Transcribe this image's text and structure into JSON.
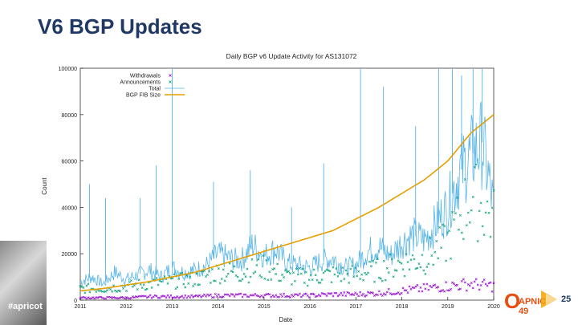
{
  "slide": {
    "title": "V6 BGP Updates",
    "footer_tag": "#apricot",
    "logo_text": "APNIC 49",
    "badge_text": "25"
  },
  "colors": {
    "title": "#1f3864",
    "withdrawals": "#9400d3",
    "announcements": "#009e73",
    "total": "#56b4e9",
    "fib": "#e69f00"
  },
  "chart_data": {
    "type": "line",
    "title": "Daily BGP v6 Update Activity for AS131072",
    "xlabel": "Date",
    "ylabel": "Count",
    "xlim": [
      2011.0,
      2020.0
    ],
    "ylim": [
      0,
      100000
    ],
    "x_ticks": [
      "2011",
      "2012",
      "2013",
      "2014",
      "2015",
      "2016",
      "2017",
      "2018",
      "2019",
      "2020"
    ],
    "y_ticks": [
      "0",
      "20000",
      "40000",
      "60000",
      "80000",
      "100000"
    ],
    "legend_position": "top-left",
    "grid": false,
    "series": [
      {
        "name": "Withdrawals",
        "style": "points",
        "x": [
          2011.0,
          2011.5,
          2012.0,
          2012.5,
          2013.0,
          2013.5,
          2014.0,
          2014.5,
          2015.0,
          2015.5,
          2016.0,
          2016.5,
          2017.0,
          2017.5,
          2018.0,
          2018.5,
          2019.0,
          2019.5,
          2020.0
        ],
        "values": [
          1000,
          1000,
          1000,
          1500,
          1500,
          1500,
          2000,
          2000,
          2000,
          2000,
          2000,
          2500,
          2500,
          3000,
          4000,
          5000,
          6000,
          7000,
          6000
        ]
      },
      {
        "name": "Announcements",
        "style": "points",
        "x": [
          2011.0,
          2011.5,
          2012.0,
          2012.5,
          2013.0,
          2013.5,
          2014.0,
          2014.5,
          2015.0,
          2015.5,
          2016.0,
          2016.5,
          2017.0,
          2017.5,
          2018.0,
          2018.5,
          2019.0,
          2019.5,
          2020.0
        ],
        "values": [
          5000,
          5000,
          6000,
          7000,
          8000,
          9000,
          12000,
          12000,
          14000,
          10000,
          10000,
          11000,
          11000,
          13000,
          16000,
          18000,
          25000,
          45000,
          35000
        ]
      },
      {
        "name": "Total",
        "style": "line",
        "x": [
          2011.0,
          2011.25,
          2011.5,
          2011.75,
          2012.0,
          2012.25,
          2012.5,
          2012.75,
          2013.0,
          2013.25,
          2013.5,
          2013.75,
          2014.0,
          2014.25,
          2014.5,
          2014.75,
          2015.0,
          2015.25,
          2015.5,
          2015.75,
          2016.0,
          2016.25,
          2016.5,
          2016.75,
          2017.0,
          2017.25,
          2017.5,
          2017.75,
          2018.0,
          2018.25,
          2018.5,
          2018.75,
          2019.0,
          2019.25,
          2019.5,
          2019.75,
          2020.0
        ],
        "values": [
          8000,
          10000,
          7000,
          12000,
          9000,
          11000,
          13000,
          10000,
          14000,
          12000,
          13000,
          15000,
          20000,
          18000,
          17000,
          24000,
          19000,
          22000,
          16000,
          15000,
          14000,
          17000,
          18000,
          14000,
          15000,
          21000,
          23000,
          19000,
          25000,
          28000,
          26000,
          33000,
          40000,
          55000,
          62000,
          68000,
          40000
        ]
      },
      {
        "name": "BGP FIB Size",
        "style": "line",
        "x": [
          2011.0,
          2011.5,
          2012.0,
          2012.5,
          2013.0,
          2013.5,
          2014.0,
          2014.5,
          2015.0,
          2015.5,
          2016.0,
          2016.5,
          2017.0,
          2017.5,
          2018.0,
          2018.5,
          2019.0,
          2019.5,
          2020.0
        ],
        "values": [
          4000,
          5000,
          6500,
          8000,
          10000,
          12000,
          15000,
          18000,
          21000,
          24000,
          27000,
          30000,
          35000,
          40000,
          46000,
          52000,
          60000,
          72000,
          80000
        ]
      }
    ],
    "spikes": {
      "x": [
        2011.2,
        2011.55,
        2012.3,
        2012.65,
        2013.0,
        2013.9,
        2014.7,
        2015.6,
        2016.3,
        2017.1,
        2017.6,
        2018.3,
        2018.8,
        2019.1,
        2019.3,
        2019.55,
        2019.75
      ],
      "values": [
        50000,
        44000,
        44000,
        58000,
        100000,
        51000,
        56000,
        40000,
        59000,
        100000,
        92000,
        75000,
        100000,
        100000,
        97000,
        100000,
        100000
      ]
    }
  }
}
